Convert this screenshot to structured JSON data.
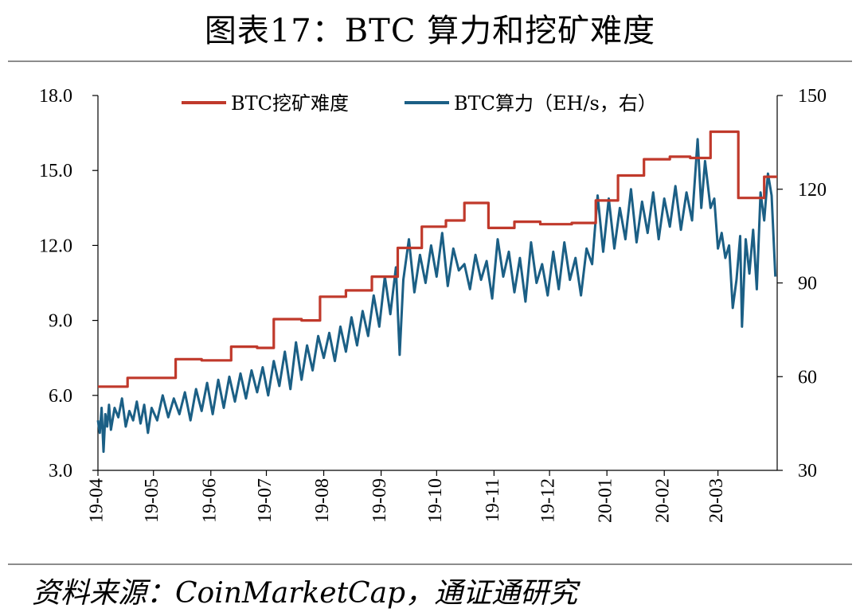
{
  "header": {
    "title": "图表17：BTC 算力和挖矿难度"
  },
  "footer": {
    "source": "资料来源：CoinMarketCap，通证通研究"
  },
  "colors": {
    "difficulty": "#c0392b",
    "hashrate": "#1b5f85"
  },
  "chart_data": {
    "type": "line",
    "x_ticks": [
      "19-04",
      "19-05",
      "19-06",
      "19-07",
      "19-08",
      "19-09",
      "19-10",
      "19-11",
      "19-12",
      "20-01",
      "20-02",
      "20-03"
    ],
    "y_left": {
      "range": [
        3.0,
        18.0
      ],
      "ticks": [
        "3.0",
        "6.0",
        "9.0",
        "12.0",
        "15.0",
        "18.0"
      ]
    },
    "y_right": {
      "range": [
        30,
        150
      ],
      "ticks": [
        "30",
        "60",
        "90",
        "120",
        "150"
      ]
    },
    "legend_position": "top",
    "series": [
      {
        "name": "BTC挖矿难度",
        "axis": "left",
        "step": true,
        "points": [
          [
            "2019-04-01",
            6.35
          ],
          [
            "2019-04-17",
            6.7
          ],
          [
            "2019-05-13",
            7.45
          ],
          [
            "2019-05-27",
            7.4
          ],
          [
            "2019-06-12",
            7.95
          ],
          [
            "2019-06-26",
            7.9
          ],
          [
            "2019-07-05",
            9.05
          ],
          [
            "2019-07-20",
            9.0
          ],
          [
            "2019-07-30",
            9.95
          ],
          [
            "2019-08-13",
            10.2
          ],
          [
            "2019-08-27",
            10.75
          ],
          [
            "2019-09-10",
            11.9
          ],
          [
            "2019-09-23",
            12.75
          ],
          [
            "2019-10-06",
            13.0
          ],
          [
            "2019-10-16",
            13.7
          ],
          [
            "2019-10-29",
            12.7
          ],
          [
            "2019-11-12",
            12.95
          ],
          [
            "2019-11-26",
            12.85
          ],
          [
            "2019-12-13",
            12.9
          ],
          [
            "2019-12-26",
            13.8
          ],
          [
            "2020-01-07",
            14.8
          ],
          [
            "2020-01-21",
            15.45
          ],
          [
            "2020-02-04",
            15.55
          ],
          [
            "2020-02-15",
            15.5
          ],
          [
            "2020-02-26",
            16.55
          ],
          [
            "2020-03-12",
            13.9
          ],
          [
            "2020-03-26",
            14.75
          ],
          [
            "2020-04-02",
            14.75
          ]
        ]
      },
      {
        "name": "BTC算力（EH/s，右）",
        "axis": "right",
        "step": false,
        "points": [
          [
            "2019-04-01",
            46
          ],
          [
            "2019-04-02",
            42
          ],
          [
            "2019-04-03",
            50
          ],
          [
            "2019-04-04",
            36
          ],
          [
            "2019-04-05",
            48
          ],
          [
            "2019-04-06",
            44
          ],
          [
            "2019-04-07",
            51
          ],
          [
            "2019-04-08",
            43
          ],
          [
            "2019-04-10",
            50
          ],
          [
            "2019-04-12",
            47
          ],
          [
            "2019-04-14",
            53
          ],
          [
            "2019-04-16",
            44
          ],
          [
            "2019-04-18",
            49
          ],
          [
            "2019-04-20",
            46
          ],
          [
            "2019-04-22",
            52
          ],
          [
            "2019-04-24",
            45
          ],
          [
            "2019-04-26",
            51
          ],
          [
            "2019-04-28",
            42
          ],
          [
            "2019-04-30",
            50
          ],
          [
            "2019-05-03",
            46
          ],
          [
            "2019-05-06",
            54
          ],
          [
            "2019-05-09",
            47
          ],
          [
            "2019-05-12",
            53
          ],
          [
            "2019-05-15",
            48
          ],
          [
            "2019-05-18",
            55
          ],
          [
            "2019-05-21",
            46
          ],
          [
            "2019-05-24",
            56
          ],
          [
            "2019-05-27",
            49
          ],
          [
            "2019-05-30",
            58
          ],
          [
            "2019-06-02",
            48
          ],
          [
            "2019-06-05",
            59
          ],
          [
            "2019-06-08",
            50
          ],
          [
            "2019-06-11",
            60
          ],
          [
            "2019-06-14",
            52
          ],
          [
            "2019-06-17",
            61
          ],
          [
            "2019-06-20",
            53
          ],
          [
            "2019-06-23",
            62
          ],
          [
            "2019-06-26",
            55
          ],
          [
            "2019-06-29",
            63
          ],
          [
            "2019-07-02",
            54
          ],
          [
            "2019-07-05",
            65
          ],
          [
            "2019-07-08",
            57
          ],
          [
            "2019-07-11",
            68
          ],
          [
            "2019-07-14",
            56
          ],
          [
            "2019-07-17",
            71
          ],
          [
            "2019-07-20",
            59
          ],
          [
            "2019-07-23",
            70
          ],
          [
            "2019-07-26",
            62
          ],
          [
            "2019-07-29",
            73
          ],
          [
            "2019-08-01",
            66
          ],
          [
            "2019-08-04",
            74
          ],
          [
            "2019-08-07",
            65
          ],
          [
            "2019-08-10",
            76
          ],
          [
            "2019-08-13",
            68
          ],
          [
            "2019-08-16",
            79
          ],
          [
            "2019-08-19",
            70
          ],
          [
            "2019-08-22",
            81
          ],
          [
            "2019-08-25",
            73
          ],
          [
            "2019-08-28",
            86
          ],
          [
            "2019-08-31",
            76
          ],
          [
            "2019-09-03",
            92
          ],
          [
            "2019-09-06",
            80
          ],
          [
            "2019-09-09",
            95
          ],
          [
            "2019-09-11",
            67
          ],
          [
            "2019-09-13",
            91
          ],
          [
            "2019-09-16",
            104
          ],
          [
            "2019-09-19",
            87
          ],
          [
            "2019-09-22",
            99
          ],
          [
            "2019-09-25",
            90
          ],
          [
            "2019-09-28",
            102
          ],
          [
            "2019-10-01",
            92
          ],
          [
            "2019-10-04",
            106
          ],
          [
            "2019-10-07",
            89
          ],
          [
            "2019-10-10",
            101
          ],
          [
            "2019-10-13",
            94
          ],
          [
            "2019-10-16",
            96
          ],
          [
            "2019-10-19",
            88
          ],
          [
            "2019-10-22",
            99
          ],
          [
            "2019-10-25",
            91
          ],
          [
            "2019-10-28",
            97
          ],
          [
            "2019-10-31",
            85
          ],
          [
            "2019-11-03",
            104
          ],
          [
            "2019-11-06",
            92
          ],
          [
            "2019-11-09",
            100
          ],
          [
            "2019-11-12",
            87
          ],
          [
            "2019-11-15",
            98
          ],
          [
            "2019-11-18",
            84
          ],
          [
            "2019-11-21",
            103
          ],
          [
            "2019-11-24",
            90
          ],
          [
            "2019-11-27",
            96
          ],
          [
            "2019-11-30",
            86
          ],
          [
            "2019-12-03",
            100
          ],
          [
            "2019-12-06",
            88
          ],
          [
            "2019-12-09",
            103
          ],
          [
            "2019-12-12",
            91
          ],
          [
            "2019-12-15",
            98
          ],
          [
            "2019-12-18",
            86
          ],
          [
            "2019-12-21",
            101
          ],
          [
            "2019-12-24",
            96
          ],
          [
            "2019-12-27",
            118
          ],
          [
            "2019-12-30",
            100
          ],
          [
            "2020-01-02",
            117
          ],
          [
            "2020-01-05",
            101
          ],
          [
            "2020-01-08",
            114
          ],
          [
            "2020-01-11",
            104
          ],
          [
            "2020-01-14",
            120
          ],
          [
            "2020-01-17",
            103
          ],
          [
            "2020-01-20",
            116
          ],
          [
            "2020-01-23",
            106
          ],
          [
            "2020-01-26",
            119
          ],
          [
            "2020-01-29",
            104
          ],
          [
            "2020-02-01",
            117
          ],
          [
            "2020-02-04",
            108
          ],
          [
            "2020-02-07",
            121
          ],
          [
            "2020-02-10",
            107
          ],
          [
            "2020-02-13",
            119
          ],
          [
            "2020-02-16",
            110
          ],
          [
            "2020-02-19",
            136
          ],
          [
            "2020-02-21",
            114
          ],
          [
            "2020-02-23",
            129
          ],
          [
            "2020-02-26",
            114
          ],
          [
            "2020-02-28",
            117
          ],
          [
            "2020-03-01",
            101
          ],
          [
            "2020-03-03",
            106
          ],
          [
            "2020-03-05",
            98
          ],
          [
            "2020-03-07",
            102
          ],
          [
            "2020-03-09",
            82
          ],
          [
            "2020-03-11",
            91
          ],
          [
            "2020-03-13",
            105
          ],
          [
            "2020-03-14",
            76
          ],
          [
            "2020-03-16",
            104
          ],
          [
            "2020-03-18",
            93
          ],
          [
            "2020-03-20",
            107
          ],
          [
            "2020-03-22",
            88
          ],
          [
            "2020-03-24",
            119
          ],
          [
            "2020-03-26",
            110
          ],
          [
            "2020-03-28",
            125
          ],
          [
            "2020-03-30",
            118
          ],
          [
            "2020-04-01",
            92
          ]
        ]
      }
    ]
  }
}
